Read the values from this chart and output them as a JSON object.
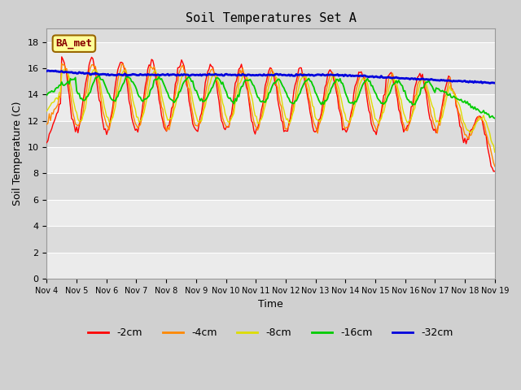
{
  "title": "Soil Temperatures Set A",
  "xlabel": "Time",
  "ylabel": "Soil Temperature (C)",
  "ylim": [
    0,
    19
  ],
  "yticks": [
    0,
    2,
    4,
    6,
    8,
    10,
    12,
    14,
    16,
    18
  ],
  "annotation_text": "BA_met",
  "annotation_bg": "#ffff99",
  "annotation_border": "#996600",
  "legend_labels": [
    "-2cm",
    "-4cm",
    "-8cm",
    "-16cm",
    "-32cm"
  ],
  "line_colors": [
    "#ff0000",
    "#ff8800",
    "#dddd00",
    "#00cc00",
    "#0000dd"
  ],
  "xtick_labels": [
    "Nov 4",
    "Nov 5",
    "Nov 6",
    "Nov 7",
    "Nov 8",
    "Nov 9",
    "Nov 10",
    "Nov 11",
    "Nov 12",
    "Nov 13",
    "Nov 14",
    "Nov 15",
    "Nov 16",
    "Nov 17",
    "Nov 18",
    "Nov 19"
  ]
}
